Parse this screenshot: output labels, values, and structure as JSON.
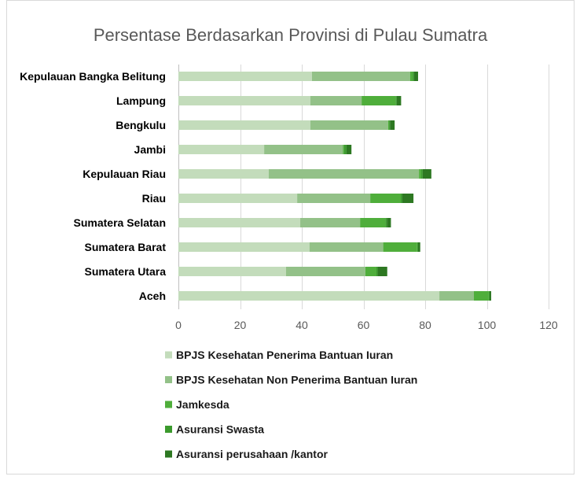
{
  "chart_data": {
    "type": "bar",
    "orientation": "horizontal",
    "stacked": true,
    "title": "Persentase Berdasarkan Provinsi di Pulau Sumatra",
    "xlabel": "",
    "ylabel": "",
    "xlim": [
      0,
      120
    ],
    "xticks": [
      0,
      20,
      40,
      60,
      80,
      100,
      120
    ],
    "grid": "vertical",
    "legend_position": "bottom",
    "categories": [
      "Kepulauan Bangka Belitung",
      "Lampung",
      "Bengkulu",
      "Jambi",
      "Kepulauan Riau",
      "Riau",
      "Sumatera Selatan",
      "Sumatera Barat",
      "Sumatera Utara",
      "Aceh"
    ],
    "series": [
      {
        "name": "BPJS Kesehatan Penerima Bantuan Iuran",
        "color": "#c3dcbb",
        "values": [
          43.3,
          42.8,
          42.8,
          27.8,
          29.3,
          38.5,
          39.5,
          42.5,
          34.9,
          84.6
        ]
      },
      {
        "name": "BPJS Kesehatan Non Penerima Bantuan Iuran",
        "color": "#93c188",
        "values": [
          31.8,
          16.6,
          25.2,
          25.5,
          48.7,
          23.7,
          19.4,
          23.9,
          25.7,
          11.2
        ]
      },
      {
        "name": "Jamkesda",
        "color": "#4fae3b",
        "values": [
          0.8,
          11.0,
          0.3,
          0.4,
          0.7,
          9.9,
          8.2,
          11.0,
          3.6,
          4.8
        ]
      },
      {
        "name": "Asuransi Swasta",
        "color": "#3b9a2d",
        "values": [
          0.5,
          0.4,
          0.3,
          0.8,
          0.5,
          0.5,
          0.5,
          0.3,
          0.4,
          0.3
        ]
      },
      {
        "name": "Asuransi perusahaan /kantor",
        "color": "#2d7822",
        "values": [
          1.3,
          1.4,
          1.5,
          1.6,
          2.8,
          3.6,
          1.3,
          0.7,
          3.1,
          0.5
        ]
      }
    ]
  }
}
